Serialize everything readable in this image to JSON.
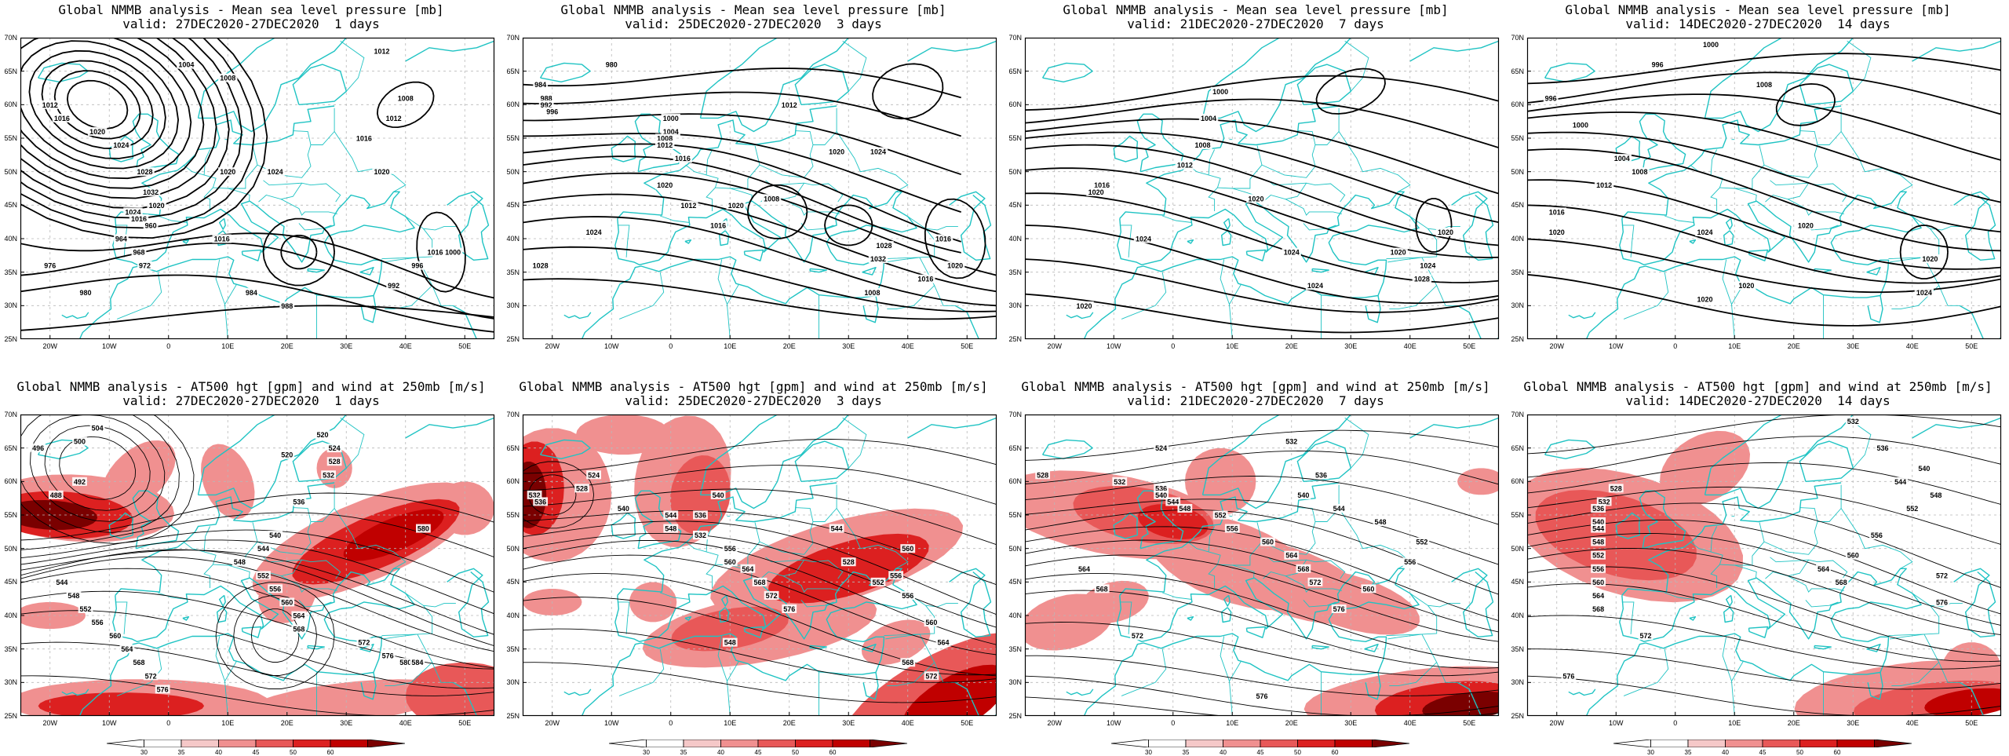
{
  "colors": {
    "coast": "#1fc3c3",
    "contour": "#000000",
    "wind_levels": [
      "#ffffff",
      "#f5c8c8",
      "#f09090",
      "#e85858",
      "#dc2020",
      "#c00000",
      "#7a0000"
    ]
  },
  "axes": {
    "lat_labels": [
      "70N",
      "65N",
      "60N",
      "55N",
      "50N",
      "45N",
      "40N",
      "35N",
      "30N",
      "25N"
    ],
    "lon_labels": [
      "20W",
      "10W",
      "0",
      "10E",
      "20E",
      "30E",
      "40E",
      "50E"
    ]
  },
  "colorbar_ticks": [
    "30",
    "35",
    "40",
    "45",
    "50",
    "60"
  ],
  "panels": [
    {
      "kind": "mslp",
      "title": "Global NMMB analysis - Mean sea level pressure [mb]",
      "valid": "valid: 27DEC2020-27DEC2020  1 days",
      "contour_labels": [
        "1012",
        "1008",
        "1012",
        "1016",
        "1020",
        "1016",
        "1024",
        "1020",
        "1016",
        "1012",
        "1016",
        "1020",
        "1024",
        "1028",
        "1032",
        "1020",
        "1024",
        "1016",
        "960",
        "964",
        "968",
        "972",
        "976",
        "980",
        "984",
        "988",
        "992",
        "996",
        "1000",
        "1004",
        "1008"
      ]
    },
    {
      "kind": "mslp",
      "title": "Global NMMB analysis - Mean sea level pressure [mb]",
      "valid": "valid: 25DEC2020-27DEC2020  3 days",
      "contour_labels": [
        "980",
        "984",
        "988",
        "992",
        "996",
        "1000",
        "1004",
        "1008",
        "1012",
        "1016",
        "1020",
        "1024",
        "1028",
        "1012",
        "1016",
        "1020",
        "1008",
        "1012",
        "1020",
        "1024",
        "1028",
        "1032",
        "1016",
        "1020",
        "1008",
        "1016"
      ]
    },
    {
      "kind": "mslp",
      "title": "Global NMMB analysis - Mean sea level pressure [mb]",
      "valid": "valid: 21DEC2020-27DEC2020  7 days",
      "contour_labels": [
        "1000",
        "1004",
        "1008",
        "1012",
        "1016",
        "1020",
        "1024",
        "1020",
        "1024",
        "1020",
        "1020",
        "1024",
        "1028",
        "1020",
        "1024"
      ]
    },
    {
      "kind": "mslp",
      "title": "Global NMMB analysis - Mean sea level pressure [mb]",
      "valid": "valid: 14DEC2020-27DEC2020  14 days",
      "contour_labels": [
        "1000",
        "996",
        "996",
        "1000",
        "1004",
        "1008",
        "1012",
        "1016",
        "1020",
        "1024",
        "1020",
        "1020",
        "1024",
        "1020",
        "1020",
        "1008"
      ]
    },
    {
      "kind": "z500",
      "title": "Global NMMB analysis - AT500 hgt [gpm] and wind at 250mb [m/s]",
      "valid": "valid: 27DEC2020-27DEC2020  1 days",
      "contour_labels": [
        "504",
        "500",
        "496",
        "492",
        "488",
        "520",
        "524",
        "528",
        "532",
        "536",
        "540",
        "544",
        "548",
        "552",
        "556",
        "560",
        "564",
        "568",
        "572",
        "576",
        "580",
        "584",
        "544",
        "548",
        "552",
        "556",
        "560",
        "564",
        "568",
        "572",
        "576",
        "580",
        "520"
      ]
    },
    {
      "kind": "z500",
      "title": "Global NMMB analysis - AT500 hgt [gpm] and wind at 250mb [m/s]",
      "valid": "valid: 25DEC2020-27DEC2020  3 days",
      "contour_labels": [
        "524",
        "528",
        "532",
        "536",
        "540",
        "544",
        "548",
        "552",
        "556",
        "560",
        "564",
        "568",
        "572",
        "576",
        "540",
        "536",
        "532",
        "528",
        "552",
        "556",
        "560",
        "564",
        "568",
        "572",
        "556",
        "560",
        "544",
        "548"
      ]
    },
    {
      "kind": "z500",
      "title": "Global NMMB analysis - AT500 hgt [gpm] and wind at 250mb [m/s]",
      "valid": "valid: 21DEC2020-27DEC2020  7 days",
      "contour_labels": [
        "524",
        "528",
        "532",
        "536",
        "540",
        "544",
        "548",
        "552",
        "556",
        "560",
        "564",
        "568",
        "572",
        "576",
        "532",
        "536",
        "540",
        "544",
        "548",
        "552",
        "556",
        "560",
        "564",
        "568",
        "572",
        "576"
      ]
    },
    {
      "kind": "z500",
      "title": "Global NMMB analysis - AT500 hgt [gpm] and wind at 250mb [m/s]",
      "valid": "valid: 14DEC2020-27DEC2020  14 days",
      "contour_labels": [
        "528",
        "532",
        "536",
        "540",
        "544",
        "548",
        "552",
        "556",
        "560",
        "564",
        "568",
        "572",
        "576",
        "532",
        "536",
        "540",
        "544",
        "548",
        "552",
        "556",
        "560",
        "564",
        "568",
        "572",
        "576"
      ]
    }
  ]
}
